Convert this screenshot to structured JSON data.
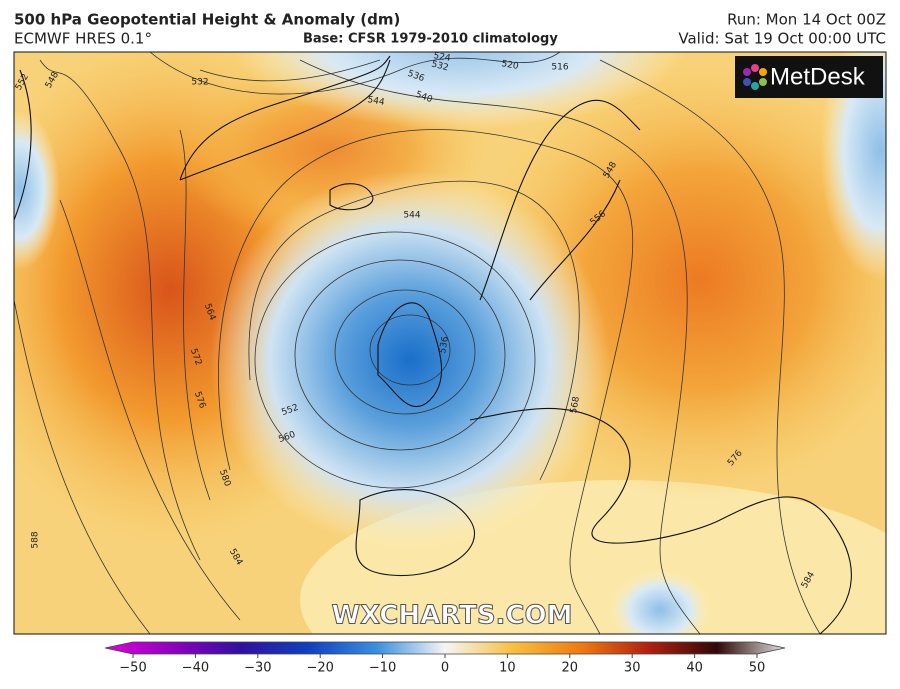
{
  "header": {
    "title": "500 hPa Geopotential Height & Anomaly (dm)",
    "model": "ECMWF HRES 0.1°",
    "base": "Base: CFSR 1979-2010 climatology",
    "run": "Run: Mon 14 Oct 00Z",
    "valid": "Valid: Sat 19 Oct 00:00 UTC"
  },
  "logo": "MetDesk",
  "watermark": "WXCHARTS.COM",
  "contour_labels": [
    552,
    548,
    532,
    536,
    532,
    524,
    520,
    516,
    544,
    540,
    544,
    548,
    556,
    564,
    572,
    576,
    552,
    560,
    580,
    584,
    588,
    536,
    568,
    576,
    584
  ],
  "colorbar": {
    "ticks": [
      {
        "value": -50,
        "label": "−50"
      },
      {
        "value": -40,
        "label": "−40"
      },
      {
        "value": -30,
        "label": "−30"
      },
      {
        "value": -20,
        "label": "−20"
      },
      {
        "value": -10,
        "label": "−10"
      },
      0,
      10,
      20,
      30,
      40,
      50
    ]
  }
}
